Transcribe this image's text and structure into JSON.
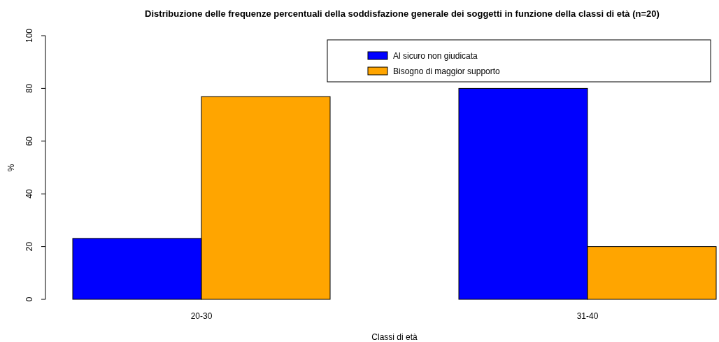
{
  "chart_data": {
    "type": "bar",
    "title": "Distribuzione delle frequenze percentuali della soddisfazione generale dei soggetti in funzione della classi di età (n=20)",
    "xlabel": "Classi di età",
    "ylabel": "%",
    "categories": [
      "20-30",
      "31-40"
    ],
    "series": [
      {
        "name": "Al sicuro non giudicata",
        "color": "#0000ff",
        "values": [
          23.1,
          80
        ]
      },
      {
        "name": "Bisogno di maggior supporto",
        "color": "#ffa500",
        "values": [
          76.9,
          20
        ]
      }
    ],
    "ylim": [
      0,
      100
    ],
    "yticks": [
      0,
      20,
      40,
      60,
      80,
      100
    ],
    "grid": false,
    "legend": "top right"
  }
}
